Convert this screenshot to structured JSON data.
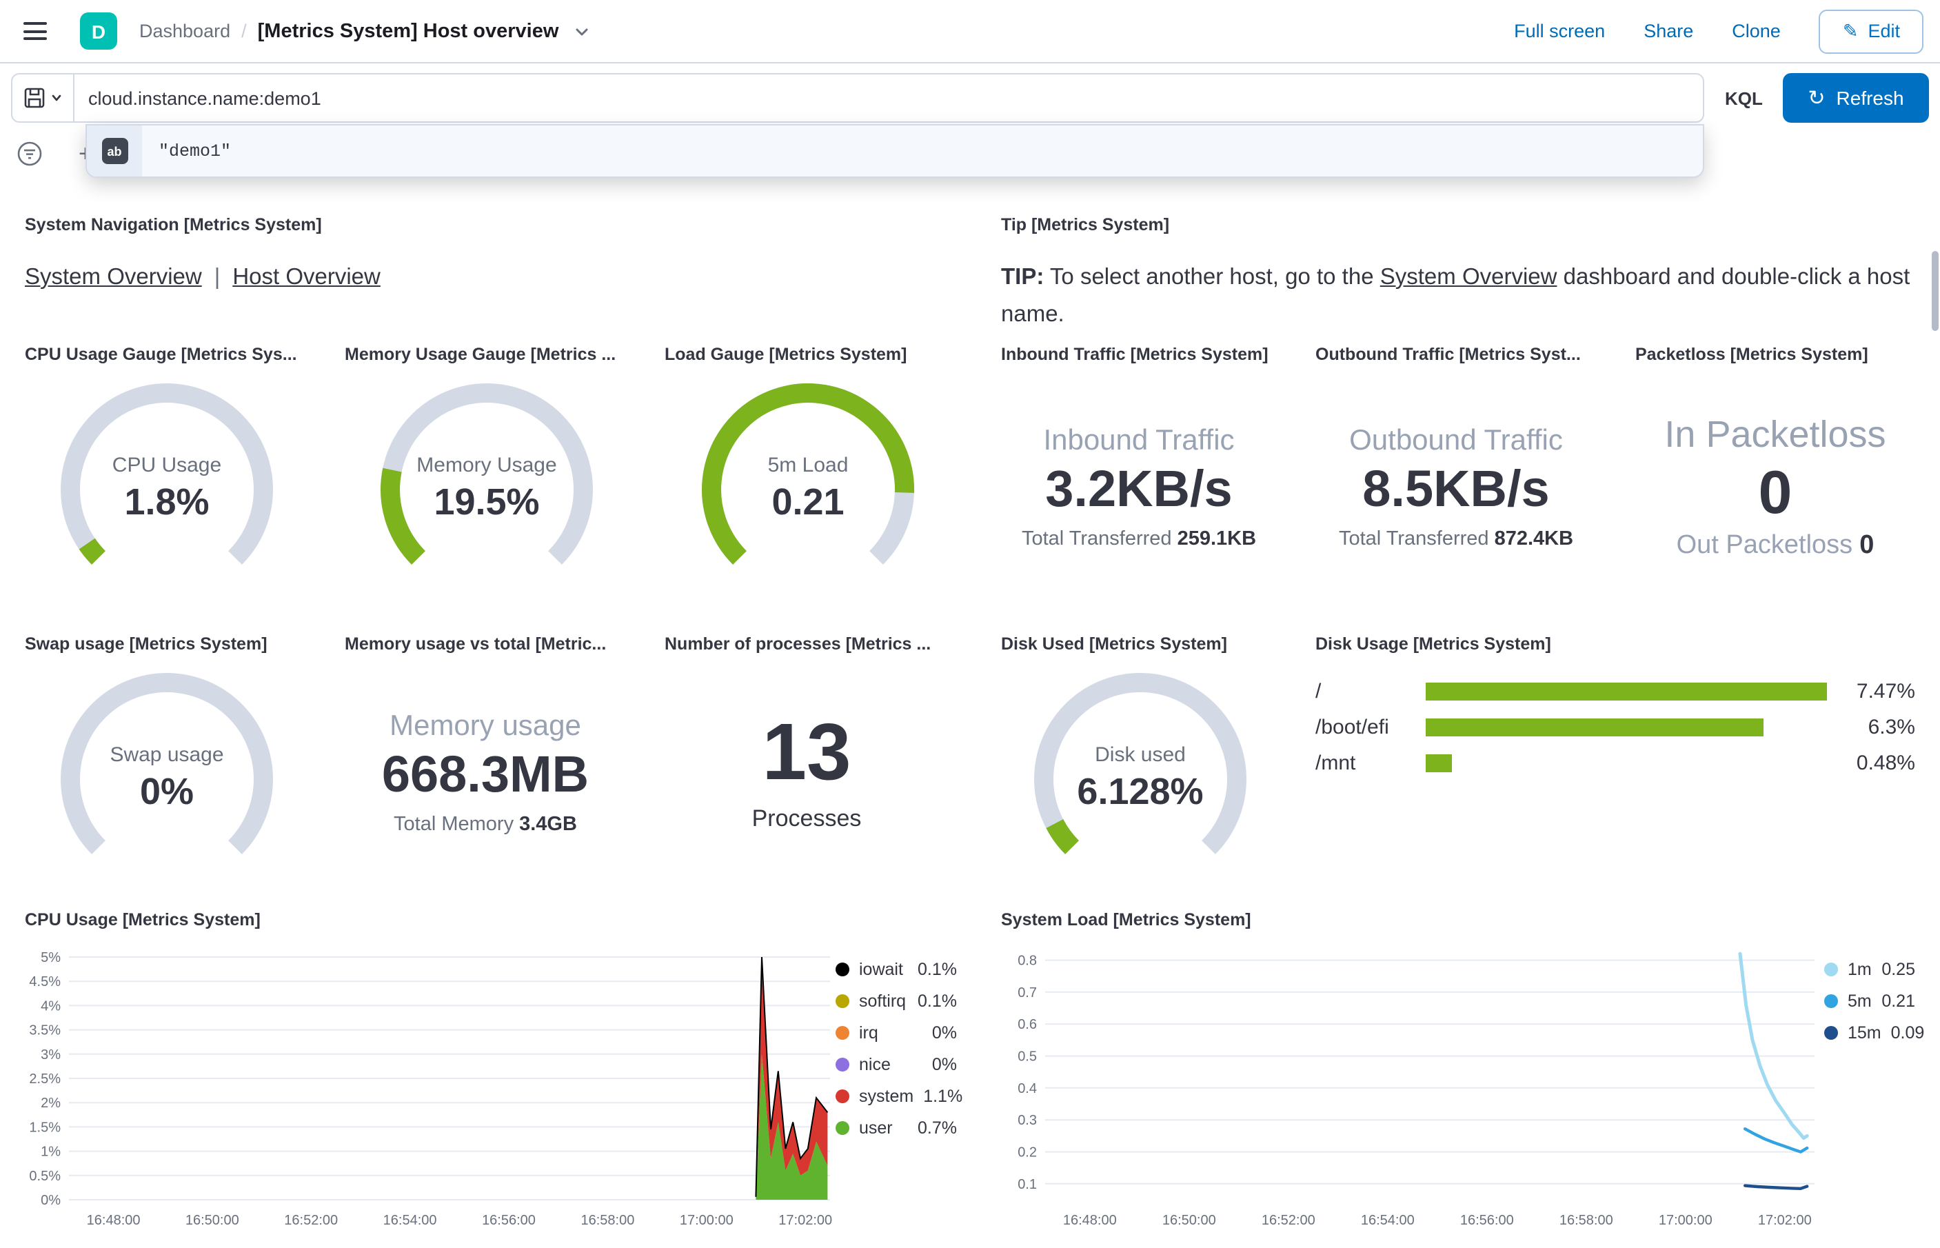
{
  "header": {
    "space_initial": "D",
    "breadcrumb_root": "Dashboard",
    "breadcrumb_separator": "/",
    "breadcrumb_current": "[Metrics System] Host overview",
    "full_screen": "Full screen",
    "share": "Share",
    "clone": "Clone",
    "edit": "Edit",
    "edit_icon": "✎"
  },
  "query_bar": {
    "query_value": "cloud.instance.name:demo1",
    "kql_label": "KQL",
    "refresh_label": "Refresh",
    "refresh_icon": "↻",
    "add_filter_icon": "+",
    "suggestion_value": "\"demo1\"",
    "value_token_glyph": "ab"
  },
  "colors": {
    "primary_blue": "#0071C2",
    "link_blue": "#006BB4",
    "teal_badge": "#00BFB3",
    "gauge_green": "#7DB31C",
    "gauge_track": "#D3DAE6",
    "muted_text": "#98A2B3",
    "subdued_text": "#69707D",
    "text": "#343741"
  },
  "panels": {
    "system_navigation": {
      "title": "System Navigation [Metrics System]",
      "link_system_overview": "System Overview",
      "separator": "|",
      "link_host_overview": "Host Overview"
    },
    "tip": {
      "title": "Tip [Metrics System]",
      "bold": "TIP:",
      "text_before_link": " To select another host, go to the ",
      "link": "System Overview",
      "text_after_link": " dashboard and double-click a host name."
    },
    "inbound": {
      "title": "Inbound Traffic [Metrics System]",
      "label": "Inbound Traffic",
      "value": "3.2KB/s",
      "sub_label": "Total Transferred",
      "sub_value": "259.1KB"
    },
    "outbound": {
      "title": "Outbound Traffic [Metrics Syst...",
      "label": "Outbound Traffic",
      "value": "8.5KB/s",
      "sub_label": "Total Transferred",
      "sub_value": "872.4KB"
    },
    "packetloss": {
      "title": "Packetloss [Metrics System]",
      "in_label": "In Packetloss",
      "in_value": "0",
      "out_label": "Out Packetloss",
      "out_value": "0"
    },
    "memory_total": {
      "title": "Memory usage vs total [Metric...",
      "label": "Memory usage",
      "value": "668.3MB",
      "sub_label": "Total Memory",
      "sub_value": "3.4GB"
    },
    "processes": {
      "title": "Number of processes [Metrics ...",
      "value": "13",
      "label": "Processes"
    }
  },
  "chart_data": [
    {
      "id": "cpu_usage_gauge",
      "type": "gauge",
      "title": "CPU Usage Gauge [Metrics Sys...",
      "label": "CPU Usage",
      "display": "1.8%",
      "value": 1.8,
      "max": 100,
      "fill_fraction": 0.04,
      "color": "#7DB31C",
      "track_color": "#D3DAE6"
    },
    {
      "id": "memory_usage_gauge",
      "type": "gauge",
      "title": "Memory Usage Gauge [Metrics ...",
      "label": "Memory Usage",
      "display": "19.5%",
      "value": 19.5,
      "max": 100,
      "fill_fraction": 0.21,
      "color": "#7DB31C",
      "track_color": "#D3DAE6"
    },
    {
      "id": "load_gauge",
      "type": "gauge",
      "title": "Load Gauge [Metrics System]",
      "label": "5m Load",
      "display": "0.21",
      "value": 0.21,
      "max": 0.25,
      "fill_fraction": 0.84,
      "color": "#7DB31C",
      "track_color": "#D3DAE6"
    },
    {
      "id": "swap_usage_gauge",
      "type": "gauge",
      "title": "Swap usage [Metrics System]",
      "label": "Swap usage",
      "display": "0%",
      "value": 0,
      "max": 100,
      "fill_fraction": 0,
      "color": "#7DB31C",
      "track_color": "#D3DAE6"
    },
    {
      "id": "disk_used_gauge",
      "type": "gauge",
      "title": "Disk Used [Metrics System]",
      "label": "Disk used",
      "display": "6.128%",
      "value": 6.128,
      "max": 100,
      "fill_fraction": 0.065,
      "color": "#7DB31C",
      "track_color": "#D3DAE6"
    },
    {
      "id": "disk_usage_bars",
      "type": "bar",
      "title": "Disk Usage [Metrics System]",
      "orientation": "horizontal",
      "categories": [
        "/",
        "/boot/efi",
        "/mnt"
      ],
      "values": [
        7.47,
        6.3,
        0.48
      ],
      "value_labels": [
        "7.47%",
        "6.3%",
        "0.48%"
      ],
      "axis_max": 7.47,
      "bar_color": "#7DB31C"
    },
    {
      "id": "cpu_usage_chart",
      "type": "area",
      "title": "CPU Usage [Metrics System]",
      "x_tick_labels": [
        "16:48:00",
        "16:50:00",
        "16:52:00",
        "16:54:00",
        "16:56:00",
        "16:58:00",
        "17:00:00",
        "17:02:00"
      ],
      "x_ticks": [
        0,
        2,
        4,
        6,
        8,
        10,
        12,
        14
      ],
      "x_unit": "minutes after 16:48:00",
      "x_range": [
        -0.9,
        14.5
      ],
      "y_ticks": [
        5,
        4.5,
        4,
        3.5,
        3,
        2.5,
        2,
        1.5,
        1,
        0.5,
        0
      ],
      "y_tick_labels": [
        "5%",
        "4.5%",
        "4%",
        "3.5%",
        "3%",
        "2.5%",
        "2%",
        "1.5%",
        "1%",
        "0.5%",
        "0%"
      ],
      "y_range": [
        0,
        5.2
      ],
      "margin_left": 40,
      "x": [
        13.0,
        13.12,
        13.3,
        13.45,
        13.6,
        13.75,
        13.9,
        14.05,
        14.22,
        14.45
      ],
      "stack": [
        {
          "name": "user",
          "color": "#5FB32E",
          "values": [
            0.03,
            3.0,
            0.85,
            1.6,
            0.6,
            0.95,
            0.5,
            0.6,
            1.2,
            0.7
          ]
        },
        {
          "name": "system",
          "color": "#D8372F",
          "values": [
            0.03,
            2.0,
            0.6,
            1.05,
            0.45,
            0.65,
            0.35,
            0.45,
            0.9,
            1.1
          ]
        }
      ],
      "outline_color": "#000000",
      "legend": [
        {
          "name": "iowait",
          "value": "0.1%",
          "color": "#000000"
        },
        {
          "name": "softirq",
          "value": "0.1%",
          "color": "#B9A700"
        },
        {
          "name": "irq",
          "value": "0%",
          "color": "#EE8432"
        },
        {
          "name": "nice",
          "value": "0%",
          "color": "#8D6FE0"
        },
        {
          "name": "system",
          "value": "1.1%",
          "color": "#D8372F"
        },
        {
          "name": "user",
          "value": "0.7%",
          "color": "#5FB32E"
        }
      ]
    },
    {
      "id": "system_load_chart",
      "type": "line",
      "title": "System Load [Metrics System]",
      "x_tick_labels": [
        "16:48:00",
        "16:50:00",
        "16:52:00",
        "16:54:00",
        "16:56:00",
        "16:58:00",
        "17:00:00",
        "17:02:00"
      ],
      "x_ticks": [
        0,
        2,
        4,
        6,
        8,
        10,
        12,
        14
      ],
      "x_unit": "minutes after 16:48:00",
      "x_range": [
        -0.9,
        14.6
      ],
      "y_ticks": [
        0.8,
        0.7,
        0.6,
        0.5,
        0.4,
        0.3,
        0.2,
        0.1
      ],
      "y_tick_labels": [
        "0.8",
        "0.7",
        "0.6",
        "0.5",
        "0.4",
        "0.3",
        "0.2",
        "0.1"
      ],
      "y_range": [
        0.05,
        0.84
      ],
      "margin_left": 34,
      "series": [
        {
          "name": "1m",
          "color": "#A0D9F2",
          "width": 2.5,
          "points": [
            [
              13.1,
              0.82
            ],
            [
              13.22,
              0.66
            ],
            [
              13.35,
              0.55
            ],
            [
              13.5,
              0.47
            ],
            [
              13.65,
              0.41
            ],
            [
              13.82,
              0.36
            ],
            [
              14.0,
              0.32
            ],
            [
              14.15,
              0.285
            ],
            [
              14.28,
              0.262
            ],
            [
              14.38,
              0.243
            ],
            [
              14.45,
              0.25
            ]
          ]
        },
        {
          "name": "5m",
          "color": "#30A3E0",
          "width": 2.2,
          "points": [
            [
              13.2,
              0.272
            ],
            [
              13.4,
              0.255
            ],
            [
              13.6,
              0.24
            ],
            [
              13.8,
              0.228
            ],
            [
              14.0,
              0.217
            ],
            [
              14.18,
              0.207
            ],
            [
              14.32,
              0.2
            ],
            [
              14.45,
              0.212
            ]
          ]
        },
        {
          "name": "15m",
          "color": "#1F4E8C",
          "width": 2.2,
          "points": [
            [
              13.2,
              0.094
            ],
            [
              13.45,
              0.091
            ],
            [
              13.7,
              0.089
            ],
            [
              13.95,
              0.087
            ],
            [
              14.15,
              0.086
            ],
            [
              14.32,
              0.085
            ],
            [
              14.45,
              0.092
            ]
          ]
        }
      ],
      "legend": [
        {
          "name": "1m",
          "value": "0.25",
          "color": "#A0D9F2"
        },
        {
          "name": "5m",
          "value": "0.21",
          "color": "#30A3E0"
        },
        {
          "name": "15m",
          "value": "0.09",
          "color": "#1F4E8C"
        }
      ]
    }
  ]
}
